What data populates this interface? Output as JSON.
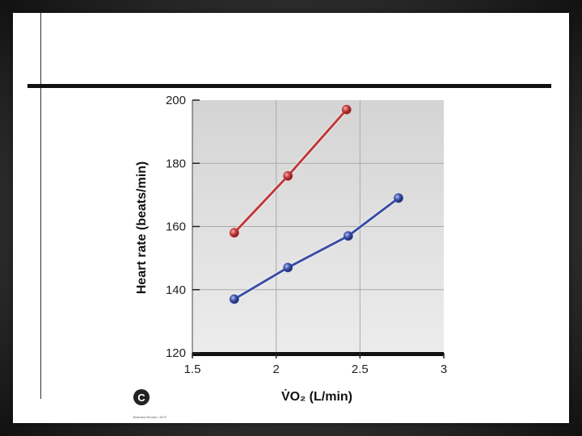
{
  "colors": {
    "red_series": "#c0393b",
    "blue_series": "#3a4ea6",
    "plot_bg": "#d9d9d9",
    "grid": "#aaaaaa",
    "axis": "#111111"
  },
  "panel_label": "C",
  "credit": "Brandon Brooks / 1972",
  "chart_data": {
    "type": "line",
    "xlabel": "V̇O₂ (L/min)",
    "ylabel": "Heart rate (beats/min)",
    "xlim": [
      1.5,
      3
    ],
    "ylim": [
      120,
      200
    ],
    "x_ticks": [
      "1.5",
      "2",
      "2.5",
      "3"
    ],
    "y_ticks": [
      "120",
      "140",
      "160",
      "180",
      "200"
    ],
    "grid": true,
    "series": [
      {
        "color": "#c0393b",
        "x": [
          1.75,
          2.07,
          2.42
        ],
        "y": [
          158,
          176,
          197
        ]
      },
      {
        "color": "#3a4ea6",
        "x": [
          1.75,
          2.07,
          2.43,
          2.73
        ],
        "y": [
          137,
          147,
          157,
          169
        ]
      }
    ]
  }
}
